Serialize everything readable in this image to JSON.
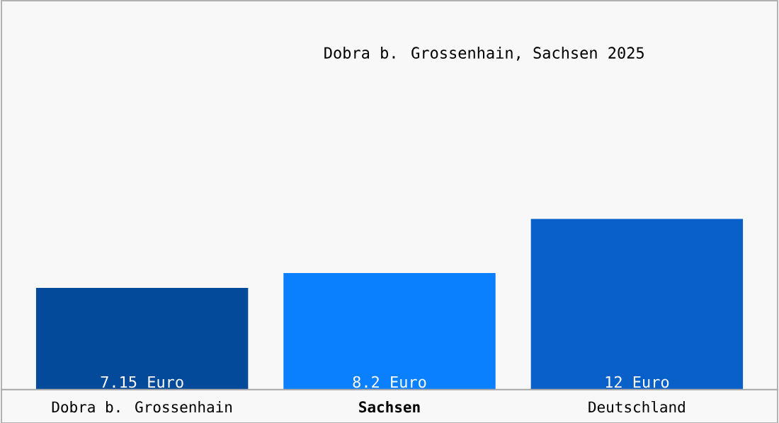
{
  "chart_data": {
    "type": "bar",
    "title": "Dobra b. Grossenhain, Sachsen 2025",
    "categories": [
      "Dobra b. Grossenhain",
      "Sachsen",
      "Deutschland"
    ],
    "values": [
      7.15,
      8.2,
      12
    ],
    "value_labels": [
      "7.15 Euro",
      "8.2 Euro",
      "12 Euro"
    ],
    "colors": [
      "#044a9a",
      "#0a80ff",
      "#0860c8"
    ]
  }
}
